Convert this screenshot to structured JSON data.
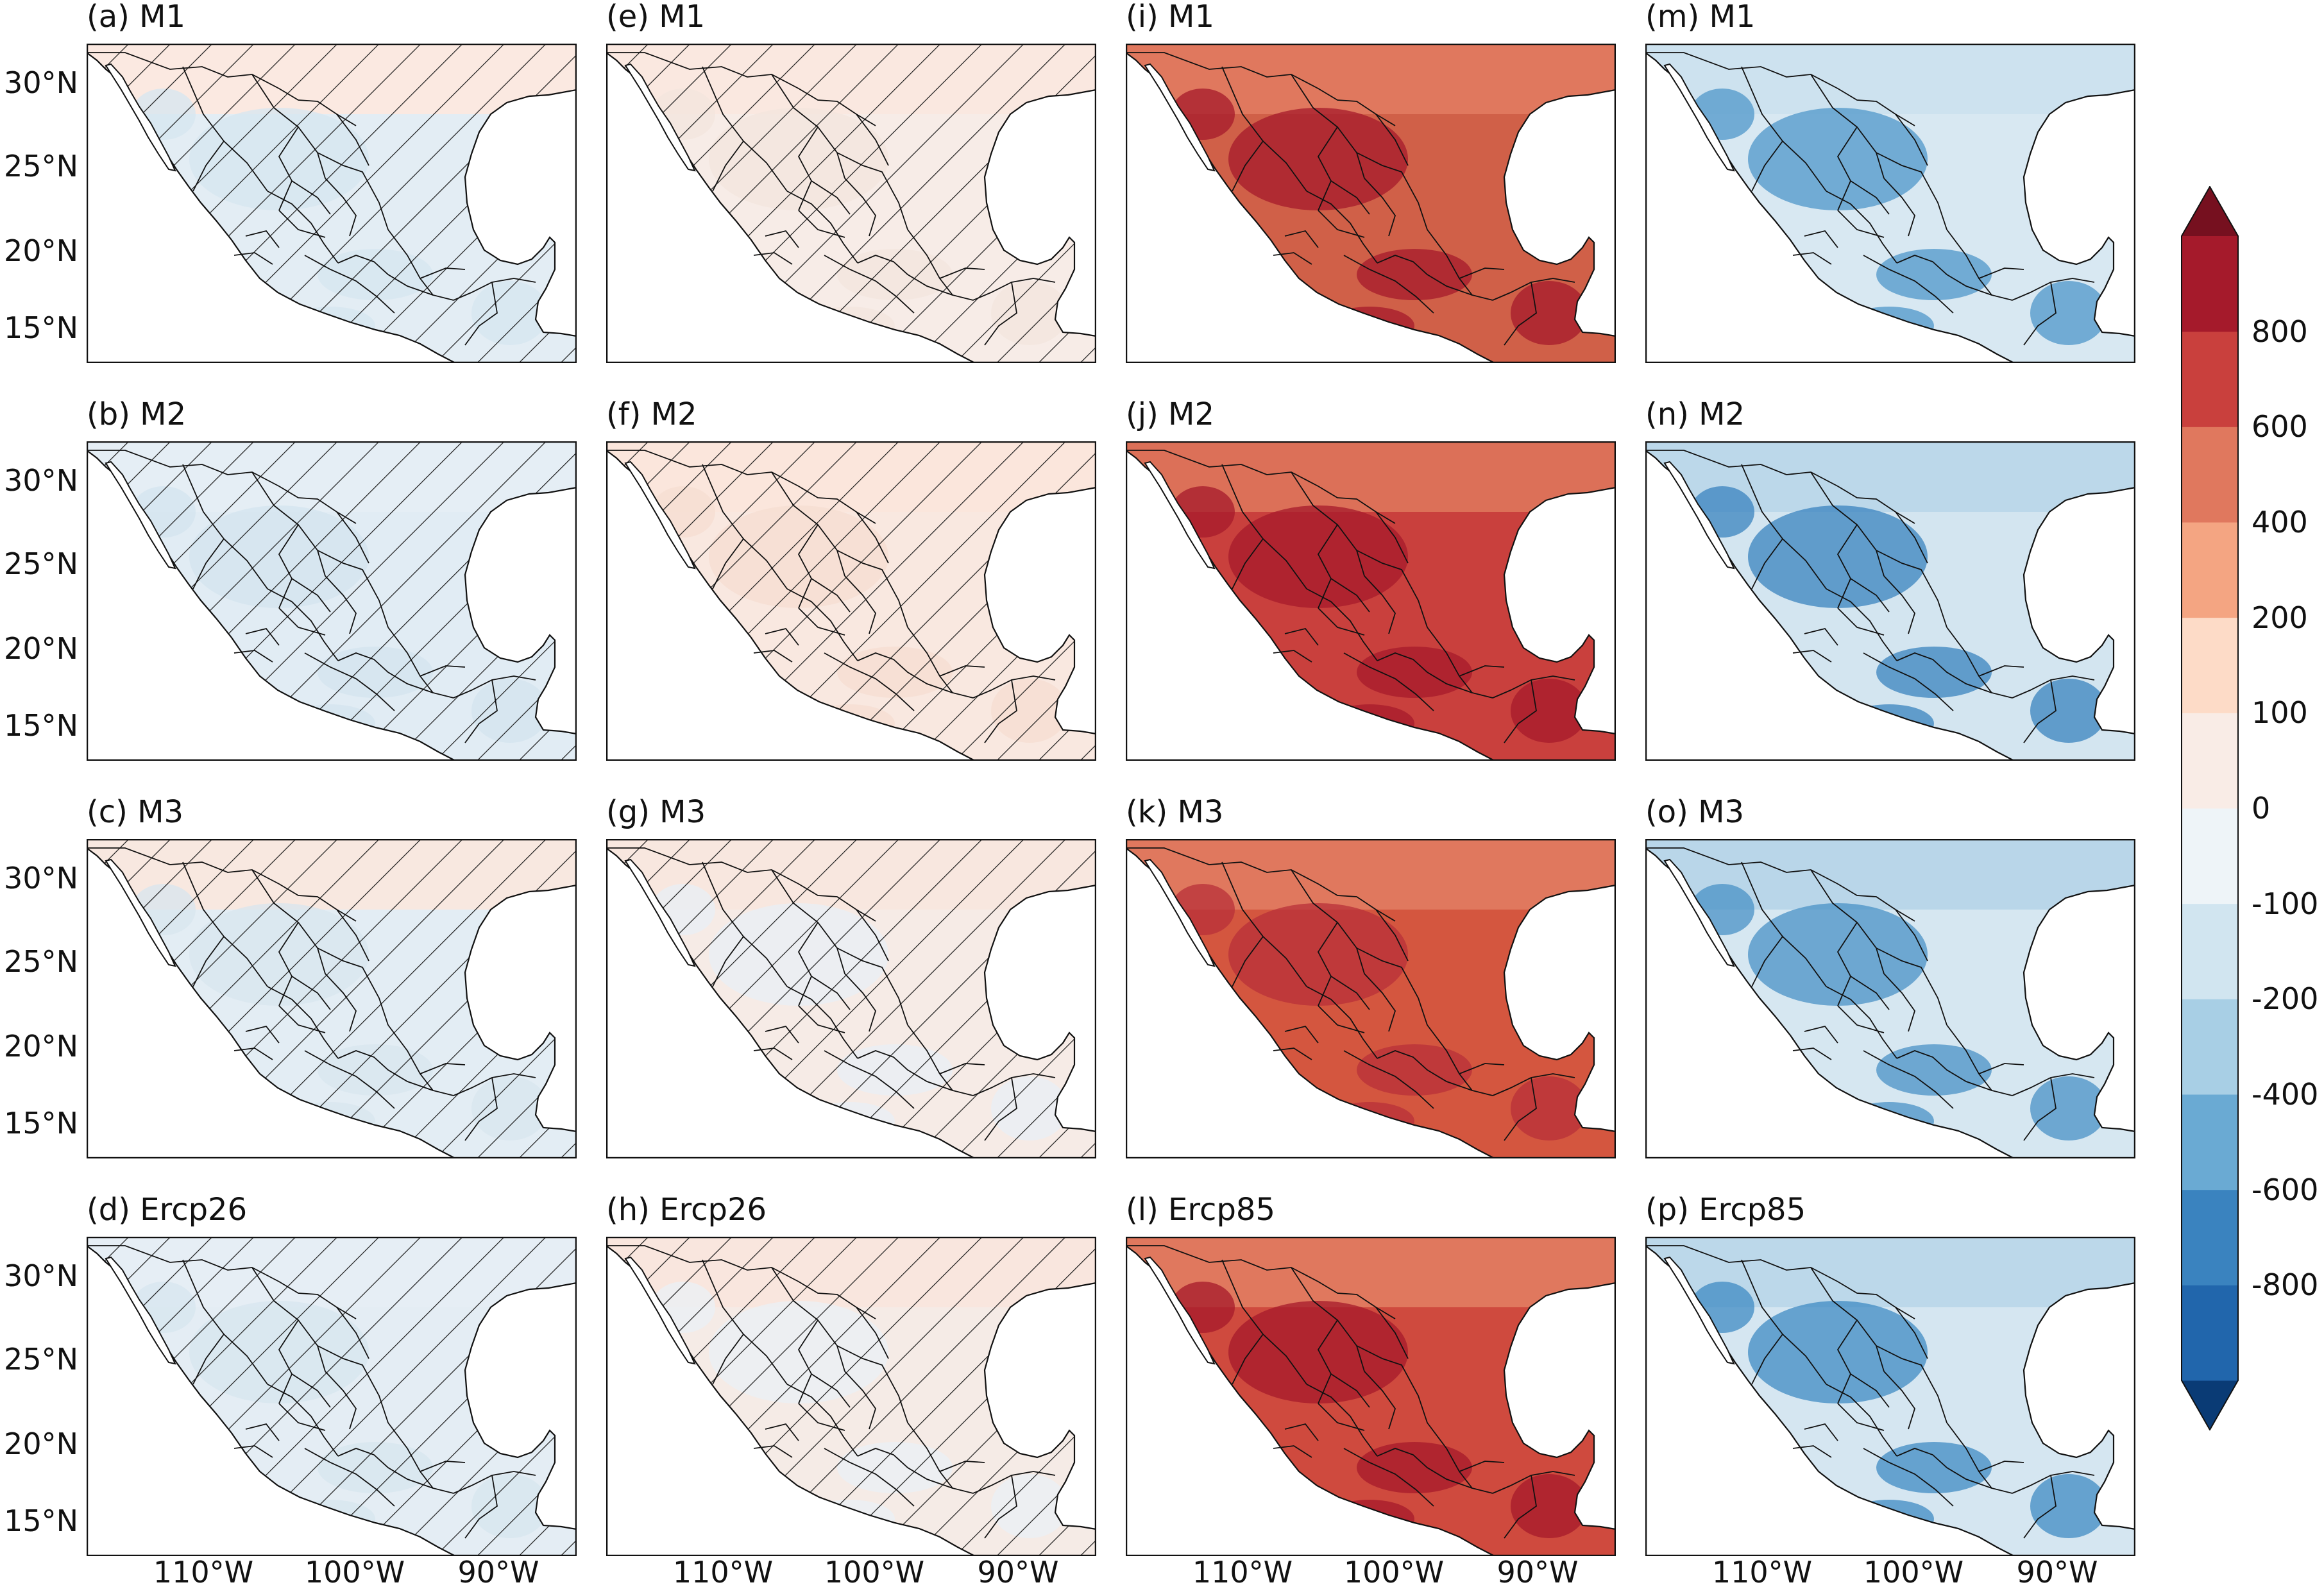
{
  "figure": {
    "lat_labels": [
      "30°N",
      "25°N",
      "20°N",
      "15°N"
    ],
    "lon_labels": [
      "110°W",
      "100°W",
      "90°W"
    ],
    "colors": {
      "ocean": "#ffffff",
      "border": "#111111",
      "hatch": "#1a1a1a"
    }
  },
  "colorbar": {
    "levels": [
      -800,
      -600,
      -400,
      -200,
      -100,
      0,
      100,
      200,
      400,
      600,
      800
    ],
    "tick_labels": [
      "800",
      "600",
      "400",
      "200",
      "100",
      "0",
      "-100",
      "-200",
      "-400",
      "-600",
      "-800"
    ],
    "colors_bottom_to_top": [
      "#0a3b75",
      "#2166ac",
      "#3a83bf",
      "#6aaad3",
      "#a8cfe5",
      "#d1e5f0",
      "#eef4f8",
      "#f9ece6",
      "#fddbc7",
      "#f4a582",
      "#e0785e",
      "#c9403d",
      "#a51a2b",
      "#76101f"
    ]
  },
  "panels": [
    {
      "title": "(a) M1",
      "hatched": true,
      "base": "#e3edf4",
      "north": "#fbe9e1",
      "dark": "#d6e6f0"
    },
    {
      "title": "(b) M2",
      "hatched": true,
      "base": "#e1ecf4",
      "north": "#e5eef5",
      "dark": "#d3e4ef"
    },
    {
      "title": "(c) M3",
      "hatched": true,
      "base": "#e3edf4",
      "north": "#f8e8e0",
      "dark": "#d8e6ef"
    },
    {
      "title": "(d) Ercp26",
      "hatched": true,
      "base": "#e4edf4",
      "north": "#e6eef5",
      "dark": "#d7e5ef"
    },
    {
      "title": "(e) M1",
      "hatched": true,
      "base": "#f7ece7",
      "north": "#fae8e0",
      "dark": "#f3e5de"
    },
    {
      "title": "(f) M2",
      "hatched": true,
      "base": "#f9e8e0",
      "north": "#fbe6dc",
      "dark": "#f6ddd1"
    },
    {
      "title": "(g) M3",
      "hatched": true,
      "base": "#f6ebe6",
      "north": "#f8e7df",
      "dark": "#e8eff5"
    },
    {
      "title": "(h) Ercp26",
      "hatched": true,
      "base": "#f5ebe6",
      "north": "#f9e6de",
      "dark": "#e9f0f5"
    },
    {
      "title": "(i) M1",
      "hatched": false,
      "base": "#d06048",
      "north": "#e0785e",
      "dark": "#a51a2b"
    },
    {
      "title": "(j) M2",
      "hatched": false,
      "base": "#c9403d",
      "north": "#dc7058",
      "dark": "#a51a2b"
    },
    {
      "title": "(k) M3",
      "hatched": false,
      "base": "#d4563f",
      "north": "#e0785e",
      "dark": "#b8303a"
    },
    {
      "title": "(l) Ercp85",
      "hatched": false,
      "base": "#cf4a3e",
      "north": "#e0785e",
      "dark": "#a51a2b"
    },
    {
      "title": "(m) M1",
      "hatched": false,
      "base": "#d8e8f2",
      "north": "#cde2ef",
      "dark": "#4f97c9"
    },
    {
      "title": "(n) M2",
      "hatched": false,
      "base": "#d3e5f0",
      "north": "#bcd8ea",
      "dark": "#3a83bf"
    },
    {
      "title": "(o) M3",
      "hatched": false,
      "base": "#d6e7f1",
      "north": "#b9d6e9",
      "dark": "#4a92c6"
    },
    {
      "title": "(p) Ercp85",
      "hatched": false,
      "base": "#d5e6f1",
      "north": "#bcd8ea",
      "dark": "#3f8bc3"
    }
  ]
}
